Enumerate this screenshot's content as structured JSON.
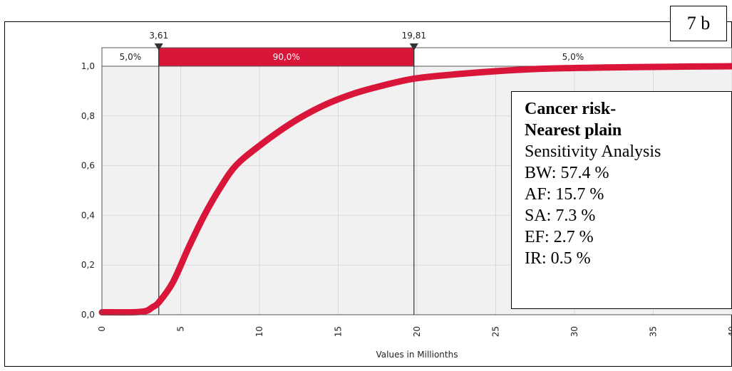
{
  "panel_label": "7 b",
  "chart_data": {
    "type": "line",
    "xlabel": "Values in Millionths",
    "ylabel": "",
    "xlim": [
      0,
      40
    ],
    "ylim": [
      0,
      1
    ],
    "x_ticks": [
      "0",
      "5",
      "10",
      "15",
      "20",
      "25",
      "30",
      "35",
      "40"
    ],
    "y_ticks": [
      "0,0",
      "0,2",
      "0,4",
      "0,6",
      "0,8",
      "1,0"
    ],
    "grid": true,
    "series": [
      {
        "name": "",
        "color": "#d9163a",
        "x": [
          0,
          2,
          2.8,
          3.2,
          3.61,
          4.5,
          5.5,
          6.5,
          7.5,
          8.5,
          10,
          12,
          14,
          16,
          18,
          19.81,
          22,
          25,
          28,
          32,
          36,
          40
        ],
        "y": [
          0.01,
          0.01,
          0.015,
          0.03,
          0.05,
          0.13,
          0.27,
          0.4,
          0.51,
          0.6,
          0.68,
          0.77,
          0.84,
          0.89,
          0.925,
          0.95,
          0.965,
          0.98,
          0.99,
          0.995,
          0.998,
          1.0
        ]
      }
    ],
    "delimiters": [
      {
        "value": 3.61,
        "label": "3,61"
      },
      {
        "value": 19.81,
        "label": "19,81"
      }
    ],
    "bands": [
      {
        "label": "5,0%",
        "from": 0,
        "to": 3.61,
        "highlight": false
      },
      {
        "label": "90,0%",
        "from": 3.61,
        "to": 19.81,
        "highlight": true
      },
      {
        "label": "5,0%",
        "from": 19.81,
        "to": 40,
        "highlight": false
      }
    ],
    "band_color": "#d9163a",
    "plot_background": "#f1f1f1",
    "grid_color": "#d9d9d9"
  },
  "info_box": {
    "title_line1": "Cancer risk-",
    "title_line2": "Nearest plain",
    "subtitle": "Sensitivity Analysis",
    "items": [
      "BW: 57.4 %",
      "AF: 15.7 %",
      "SA: 7.3 %",
      "EF: 2.7 %",
      "IR: 0.5 %"
    ]
  }
}
